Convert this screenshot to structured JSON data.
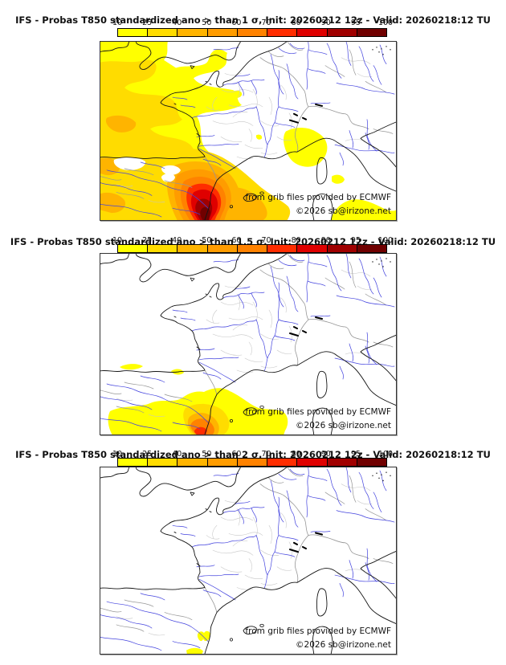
{
  "colorbar": {
    "tick_labels": [
      "10",
      "25",
      "40",
      "50",
      "60",
      "70",
      "80",
      "90",
      "95",
      "100"
    ],
    "segment_colors": [
      "#FFFF00",
      "#FFDC00",
      "#FFB400",
      "#FF9C00",
      "#FF8200",
      "#FF2D00",
      "#DF0000",
      "#A00000",
      "#700000"
    ]
  },
  "attribution": {
    "source_note": "from grib files provided by ECMWF",
    "copyright": "©2026 sb@irizone.net"
  },
  "panels": [
    {
      "id": "sigma-1",
      "title": "IFS - Probas T850  standardized ano > than 1 σ, Init: 20260212 12z - Valid: 20260218:12 TU"
    },
    {
      "id": "sigma-1-5",
      "title": "IFS - Probas T850  standardized ano > than 1.5 σ, Init: 20260212 12z - Valid: 20260218:12 TU"
    },
    {
      "id": "sigma-2",
      "title": "IFS - Probas T850  standardized ano > than 2 σ, Init: 20260212 12z - Valid: 20260218:12 TU"
    }
  ],
  "chart_data": [
    {
      "type": "heatmap",
      "subtype": "filled-contour probability map",
      "model": "IFS",
      "variable": "T850 standardized anomaly",
      "threshold": "> 1 σ",
      "init": "20260212 12z",
      "valid": "20260218:12 TU",
      "region": "France / western Europe",
      "levels_percent": [
        10,
        25,
        40,
        50,
        60,
        70,
        80,
        90,
        95,
        100
      ],
      "legend_position": "top",
      "values_by_area": [
        {
          "area": "NE Spain (Catalonia) hotspot core",
          "probability_percent": "95-100"
        },
        {
          "area": "ring around NE Spain hotspot",
          "probability_percent": "60-95"
        },
        {
          "area": "Bay of Biscay, northern Spain, western Mediterranean",
          "probability_percent": "25-60"
        },
        {
          "area": "Atlantic, southern England, Channel, western France fringe",
          "probability_percent": "10-40"
        },
        {
          "area": "Alps / Liguria patch and SW Sardinia patch",
          "probability_percent": "10-25"
        },
        {
          "area": "interior/NE France, Germany, northern Italy, Corsica",
          "probability_percent": "<10 (white)"
        }
      ]
    },
    {
      "type": "heatmap",
      "subtype": "filled-contour probability map",
      "model": "IFS",
      "variable": "T850 standardized anomaly",
      "threshold": "> 1.5 σ",
      "init": "20260212 12z",
      "valid": "20260218:12 TU",
      "region": "France / western Europe",
      "levels_percent": [
        10,
        25,
        40,
        50,
        60,
        70,
        80,
        90,
        95,
        100
      ],
      "legend_position": "top",
      "values_by_area": [
        {
          "area": "Spanish Mediterranean coast near Valencia (core)",
          "probability_percent": "50-70"
        },
        {
          "area": "NE Spain and Balearic sea around core",
          "probability_percent": "10-50"
        },
        {
          "area": "small slivers along Cantabrian (north Spain) coast",
          "probability_percent": "10-25"
        },
        {
          "area": "all of France and rest of domain",
          "probability_percent": "<10 (white)"
        }
      ]
    },
    {
      "type": "heatmap",
      "subtype": "filled-contour probability map",
      "model": "IFS",
      "variable": "T850 standardized anomaly",
      "threshold": "> 2 σ",
      "init": "20260212 12z",
      "valid": "20260218:12 TU",
      "region": "France / western Europe",
      "levels_percent": [
        10,
        25,
        40,
        50,
        60,
        70,
        80,
        90,
        95,
        100
      ],
      "legend_position": "top",
      "values_by_area": [
        {
          "area": "two small spots on Spanish coast near Valencia",
          "probability_percent": "10-25"
        },
        {
          "area": "entire rest of domain",
          "probability_percent": "<10 (white)"
        }
      ]
    }
  ]
}
